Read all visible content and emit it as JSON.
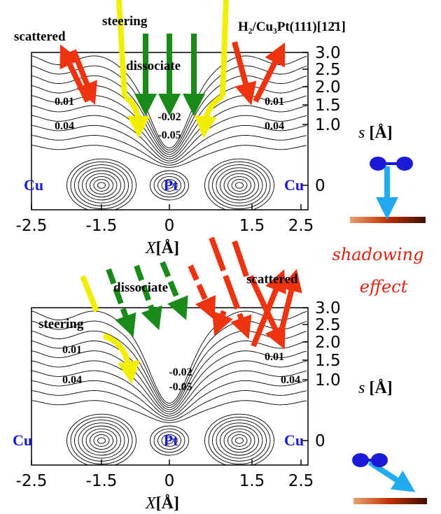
{
  "title": "H₂/Cu₃Pt(111)[12̄1]",
  "annotation": [
    "shadowing",
    "effect"
  ],
  "panels": [
    {
      "labels": [
        "scattered",
        "steering",
        "dissociate"
      ],
      "contour_labels": [
        "0.01",
        "0.04",
        "-0.02",
        "-0.05",
        "0.01",
        "0.04"
      ],
      "atoms": [
        "Cu",
        "Pt",
        "Cu"
      ],
      "xticks": [
        "-2.5",
        "-1.5",
        "0",
        "1.5",
        "2.5"
      ],
      "yticks": [
        "3.0",
        "2.5",
        "2.0",
        "1.5",
        "1.0",
        "0"
      ],
      "xlabel": "X",
      "xunit": "[Å]",
      "ylabel": "s",
      "yunit": "[Å]"
    },
    {
      "labels": [
        "scattered",
        "steering",
        "dissociate"
      ],
      "contour_labels": [
        "0.01",
        "0.04",
        "-0.02",
        "-0.05",
        "0.01",
        "0.04"
      ],
      "atoms": [
        "Cu",
        "Pt",
        "Cu"
      ],
      "xticks": [
        "-2.5",
        "-1.5",
        "0",
        "1.5",
        "2.5"
      ],
      "yticks": [
        "3.0",
        "2.5",
        "2.0",
        "1.5",
        "1.0",
        "0"
      ],
      "xlabel": "X",
      "xunit": "[Å]",
      "ylabel": "s",
      "yunit": "[Å]"
    }
  ]
}
